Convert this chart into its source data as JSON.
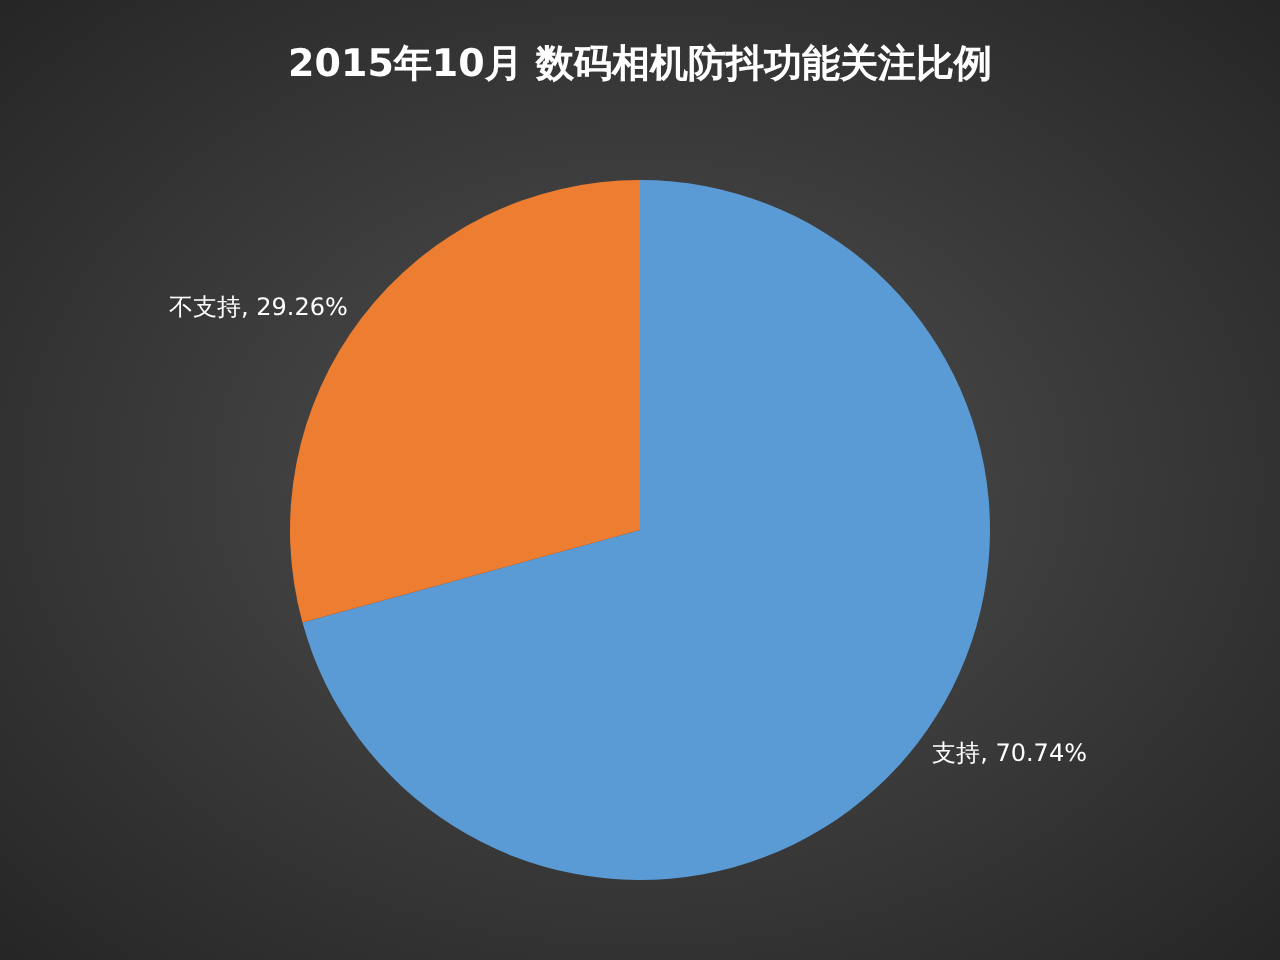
{
  "chart_data": {
    "type": "pie",
    "title": "2015年10月  数码相机防抖功能关注比例",
    "categories": [
      "支持",
      "不支持"
    ],
    "values": [
      70.74,
      29.26
    ],
    "colors": [
      "#5b9bd5",
      "#ed7d31"
    ],
    "value_labels": [
      ", 70.74%",
      ", 29.26%"
    ]
  }
}
